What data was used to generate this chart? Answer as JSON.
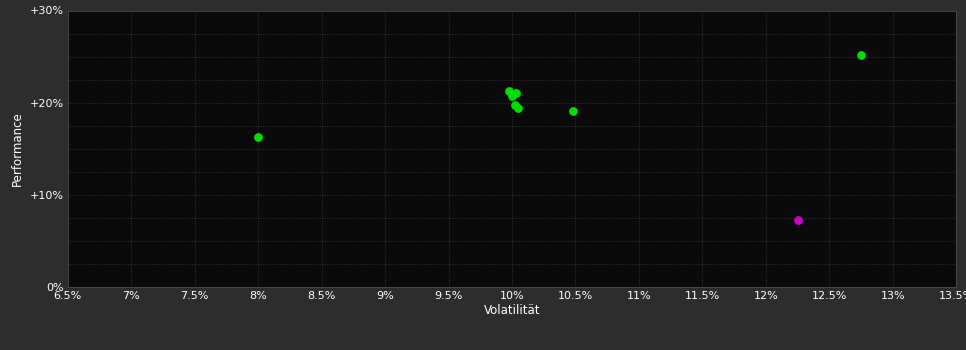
{
  "background_color": "#2d2d2d",
  "plot_bg_color": "#0a0a0a",
  "grid_color": "#3a3a3a",
  "xlabel": "Volatilität",
  "ylabel": "Performance",
  "xlim": [
    0.065,
    0.135
  ],
  "ylim": [
    0.0,
    0.3
  ],
  "xticks_labeled": [
    0.065,
    0.07,
    0.075,
    0.08,
    0.085,
    0.09,
    0.095,
    0.1,
    0.105,
    0.11,
    0.115,
    0.12,
    0.125,
    0.13,
    0.135
  ],
  "yticks_labeled": [
    0.0,
    0.1,
    0.2,
    0.3
  ],
  "ytick_labels": [
    "0%",
    "+10%",
    "+20%",
    "+30%"
  ],
  "xtick_labels": [
    "6.5%",
    "7%",
    "7.5%",
    "8%",
    "8.5%",
    "9%",
    "9.5%",
    "10%",
    "10.5%",
    "11%",
    "11.5%",
    "12%",
    "12.5%",
    "13%",
    "13.5%"
  ],
  "grid_xticks": [
    0.065,
    0.07,
    0.075,
    0.08,
    0.085,
    0.09,
    0.095,
    0.1,
    0.105,
    0.11,
    0.115,
    0.12,
    0.125,
    0.13,
    0.135
  ],
  "grid_yticks": [
    0.0,
    0.025,
    0.05,
    0.075,
    0.1,
    0.125,
    0.15,
    0.175,
    0.2,
    0.225,
    0.25,
    0.275,
    0.3
  ],
  "green_points": [
    [
      0.0998,
      0.213
    ],
    [
      0.1,
      0.207
    ],
    [
      0.1003,
      0.21
    ],
    [
      0.1002,
      0.198
    ],
    [
      0.1005,
      0.194
    ],
    [
      0.1048,
      0.191
    ],
    [
      0.08,
      0.163
    ],
    [
      0.1275,
      0.252
    ]
  ],
  "magenta_points": [
    [
      0.1225,
      0.073
    ]
  ],
  "green_color": "#00dd00",
  "magenta_color": "#cc00cc",
  "marker_size": 40,
  "tick_color": "#ffffff",
  "label_color": "#ffffff",
  "tick_fontsize": 8,
  "label_fontsize": 8.5,
  "spine_color": "#555555"
}
